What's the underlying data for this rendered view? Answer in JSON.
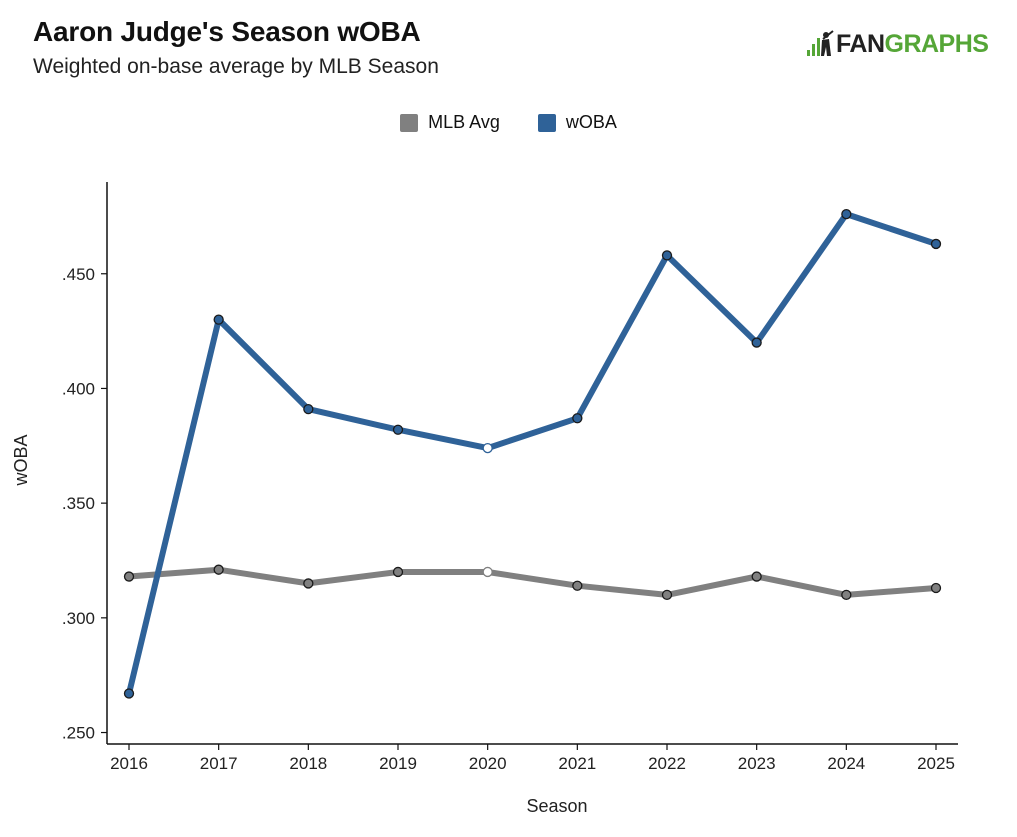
{
  "chart_data": {
    "type": "line",
    "title": "Aaron Judge's Season wOBA",
    "subtitle": "Weighted on-base average by MLB Season",
    "xlabel": "Season",
    "ylabel": "wOBA",
    "x": [
      2016,
      2017,
      2018,
      2019,
      2020,
      2021,
      2022,
      2023,
      2024,
      2025
    ],
    "x_tick_labels": [
      "2016",
      "2017",
      "2018",
      "2019",
      "2020",
      "2021",
      "2022",
      "2023",
      "2024",
      "2025"
    ],
    "y_ticks": [
      0.25,
      0.3,
      0.35,
      0.4,
      0.45
    ],
    "y_tick_labels": [
      ".250",
      ".300",
      ".350",
      ".400",
      ".450"
    ],
    "ylim": [
      0.245,
      0.49
    ],
    "grid": false,
    "legend_position": "top-center",
    "series": [
      {
        "name": "MLB Avg",
        "color": "#808080",
        "values": [
          0.318,
          0.321,
          0.315,
          0.32,
          0.32,
          0.314,
          0.31,
          0.318,
          0.31,
          0.313
        ],
        "hollow_index": 4
      },
      {
        "name": "wOBA",
        "color": "#2f6298",
        "values": [
          0.267,
          0.43,
          0.391,
          0.382,
          0.374,
          0.387,
          0.458,
          0.42,
          0.476,
          0.463
        ],
        "hollow_index": 4
      }
    ]
  },
  "brand": {
    "fan": "FAN",
    "graphs": "GRAPHS"
  }
}
